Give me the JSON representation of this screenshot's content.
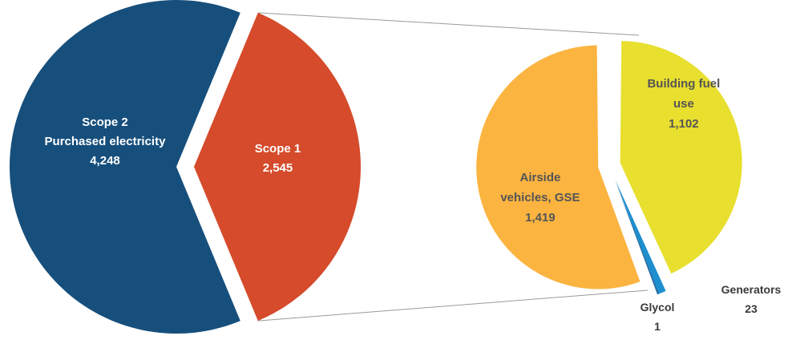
{
  "chart_data": [
    {
      "type": "pie",
      "slices": [
        {
          "label_lines": [
            "Scope 2",
            "Purchased electricity"
          ],
          "value": 4248,
          "value_text": "4,248",
          "color": "#174f7c",
          "text_color": "#ffffff"
        },
        {
          "label_lines": [
            "Scope 1"
          ],
          "value": 2545,
          "value_text": "2,545",
          "color": "#d54b2b",
          "text_color": "#ffffff"
        }
      ]
    },
    {
      "type": "pie",
      "breakdown_of": "Scope 1",
      "slices": [
        {
          "label_lines": [
            "Building fuel",
            "use"
          ],
          "value": 1102,
          "value_text": "1,102",
          "color": "#e8df2e",
          "text_color": "#555555",
          "label_position": "inside"
        },
        {
          "label_lines": [
            "Generators"
          ],
          "value": 23,
          "value_text": "23",
          "color": "#1e8fce",
          "text_color": "#3a3a3a",
          "label_position": "outside"
        },
        {
          "label_lines": [
            "Glycol"
          ],
          "value": 1,
          "value_text": "1",
          "color": "#2f6fa5",
          "text_color": "#3a3a3a",
          "label_position": "outside"
        },
        {
          "label_lines": [
            "Airside",
            "vehicles, GSE"
          ],
          "value": 1419,
          "value_text": "1,419",
          "color": "#fbb440",
          "text_color": "#555555",
          "label_position": "inside"
        }
      ]
    }
  ]
}
